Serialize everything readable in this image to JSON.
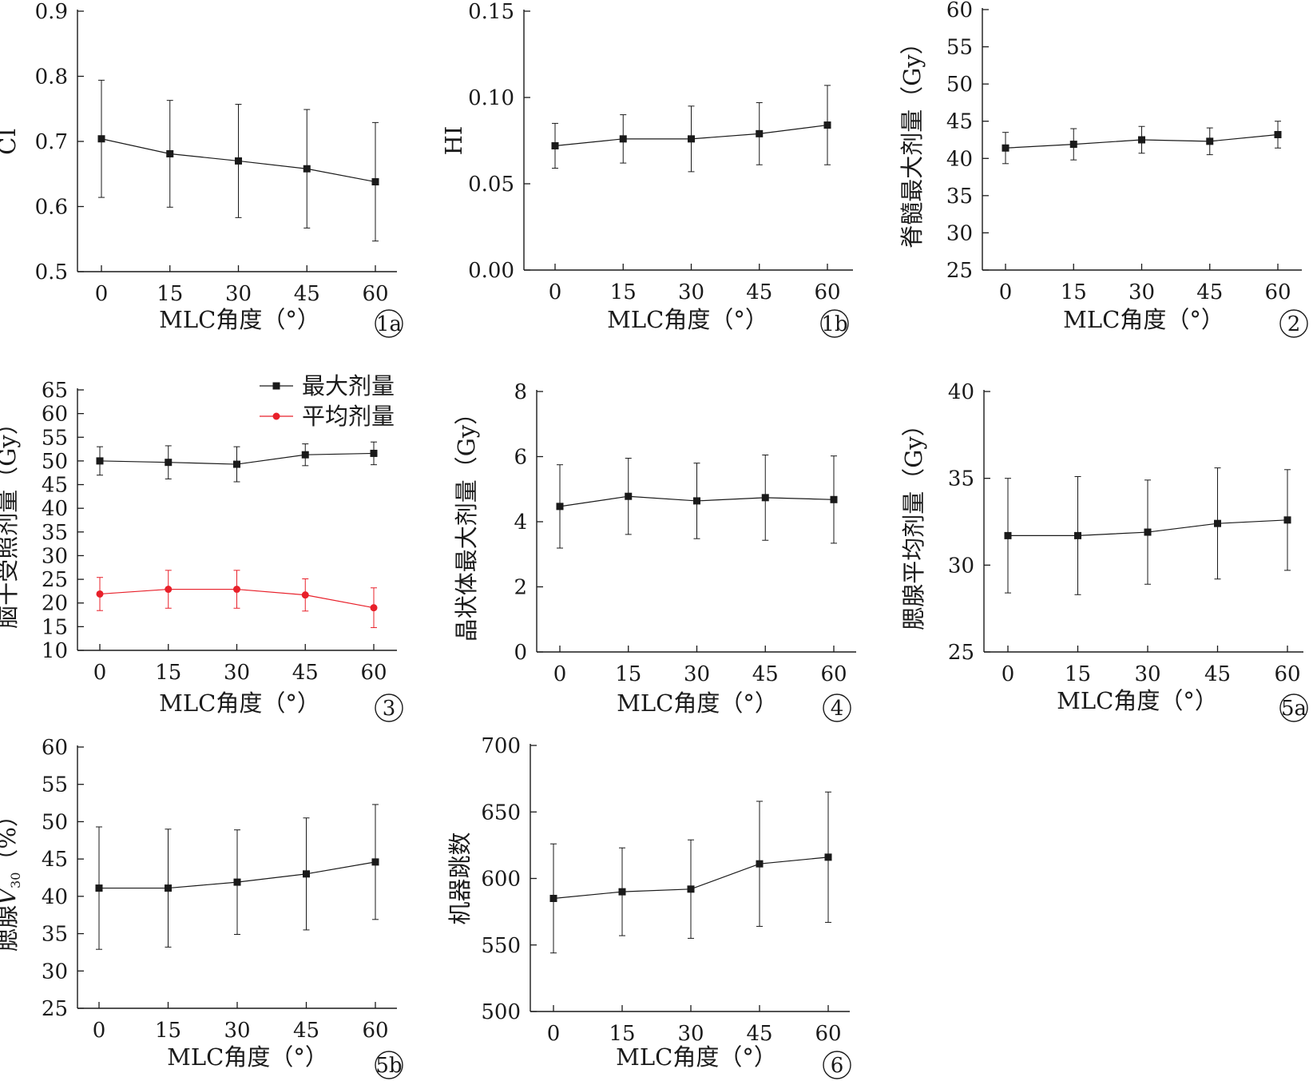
{
  "x_label": "MLC角度（°）",
  "chart_data": [
    {
      "id": "1a",
      "panel_label": "1a",
      "type": "line",
      "ylabel": "CI",
      "x": [
        0,
        15,
        30,
        45,
        60
      ],
      "y_ticks": [
        "0.5",
        "0.6",
        "0.7",
        "0.8",
        "0.9"
      ],
      "ylim": [
        0.5,
        0.9
      ],
      "series": [
        {
          "color": "#1a1a1a",
          "marker": "square",
          "values": [
            0.704,
            0.681,
            0.67,
            0.658,
            0.638
          ],
          "errors": [
            0.09,
            0.082,
            0.087,
            0.091,
            0.091
          ]
        }
      ]
    },
    {
      "id": "1b",
      "panel_label": "1b",
      "type": "line",
      "ylabel": "HI",
      "x": [
        0,
        15,
        30,
        45,
        60
      ],
      "y_ticks": [
        "0.00",
        "0.05",
        "0.10",
        "0.15"
      ],
      "ylim": [
        0,
        0.15
      ],
      "series": [
        {
          "color": "#1a1a1a",
          "marker": "square",
          "values": [
            0.072,
            0.076,
            0.076,
            0.079,
            0.084
          ],
          "errors": [
            0.013,
            0.014,
            0.019,
            0.018,
            0.023
          ]
        }
      ]
    },
    {
      "id": "2",
      "panel_label": "2",
      "type": "line",
      "ylabel": "脊髓最大剂量（Gy）",
      "x": [
        0,
        15,
        30,
        45,
        60
      ],
      "y_ticks": [
        "25",
        "30",
        "35",
        "40",
        "45",
        "50",
        "55",
        "60"
      ],
      "ylim": [
        25,
        60
      ],
      "series": [
        {
          "color": "#1a1a1a",
          "marker": "square",
          "values": [
            41.4,
            41.9,
            42.5,
            42.3,
            43.2
          ],
          "errors": [
            2.1,
            2.1,
            1.8,
            1.8,
            1.8
          ]
        }
      ]
    },
    {
      "id": "3",
      "panel_label": "3",
      "type": "line",
      "ylabel": "脑干受照剂量（Gy）",
      "x": [
        0,
        15,
        30,
        45,
        60
      ],
      "y_ticks": [
        "10",
        "15",
        "20",
        "25",
        "30",
        "35",
        "40",
        "45",
        "50",
        "55",
        "60",
        "65"
      ],
      "ylim": [
        10,
        65
      ],
      "legend": [
        "最大剂量",
        "平均剂量"
      ],
      "series": [
        {
          "name": "最大剂量",
          "color": "#1a1a1a",
          "marker": "square",
          "values": [
            50.0,
            49.7,
            49.3,
            51.3,
            51.6
          ],
          "errors": [
            3.0,
            3.5,
            3.7,
            2.3,
            2.4
          ]
        },
        {
          "name": "平均剂量",
          "color": "#e8202a",
          "marker": "circle",
          "values": [
            21.9,
            22.9,
            22.9,
            21.7,
            19.0
          ],
          "errors": [
            3.5,
            4.0,
            4.0,
            3.4,
            4.2
          ]
        }
      ]
    },
    {
      "id": "4",
      "panel_label": "4",
      "type": "line",
      "ylabel": "晶状体最大剂量（Gy）",
      "x": [
        0,
        15,
        30,
        45,
        60
      ],
      "y_ticks": [
        "0",
        "2",
        "4",
        "6",
        "8"
      ],
      "ylim": [
        0,
        8
      ],
      "series": [
        {
          "color": "#1a1a1a",
          "marker": "square",
          "values": [
            4.47,
            4.78,
            4.64,
            4.74,
            4.68
          ],
          "errors": [
            1.28,
            1.17,
            1.16,
            1.31,
            1.34
          ]
        }
      ]
    },
    {
      "id": "5a",
      "panel_label": "5a",
      "type": "line",
      "ylabel": "腮腺平均剂量（Gy）",
      "x": [
        0,
        15,
        30,
        45,
        60
      ],
      "y_ticks": [
        "25",
        "30",
        "35",
        "40"
      ],
      "ylim": [
        25,
        40
      ],
      "series": [
        {
          "color": "#1a1a1a",
          "marker": "square",
          "values": [
            31.7,
            31.7,
            31.9,
            32.4,
            32.6
          ],
          "errors": [
            3.3,
            3.4,
            3.0,
            3.2,
            2.9
          ]
        }
      ]
    },
    {
      "id": "5b",
      "panel_label": "5b",
      "type": "line",
      "ylabel": "腮腺V30（%）",
      "x": [
        0,
        15,
        30,
        45,
        60
      ],
      "y_ticks": [
        "25",
        "30",
        "35",
        "40",
        "45",
        "50",
        "55",
        "60"
      ],
      "ylim": [
        25,
        60
      ],
      "series": [
        {
          "color": "#1a1a1a",
          "marker": "square",
          "values": [
            41.1,
            41.1,
            41.9,
            43.0,
            44.6
          ],
          "errors": [
            8.2,
            7.9,
            7.0,
            7.5,
            7.7
          ]
        }
      ]
    },
    {
      "id": "6",
      "panel_label": "6",
      "type": "line",
      "ylabel": "机器跳数",
      "x": [
        0,
        15,
        30,
        45,
        60
      ],
      "y_ticks": [
        "500",
        "550",
        "600",
        "650",
        "700"
      ],
      "ylim": [
        500,
        700
      ],
      "series": [
        {
          "color": "#1a1a1a",
          "marker": "square",
          "values": [
            585,
            590,
            592,
            611,
            616
          ],
          "errors": [
            41,
            33,
            37,
            47,
            49
          ]
        }
      ]
    }
  ]
}
